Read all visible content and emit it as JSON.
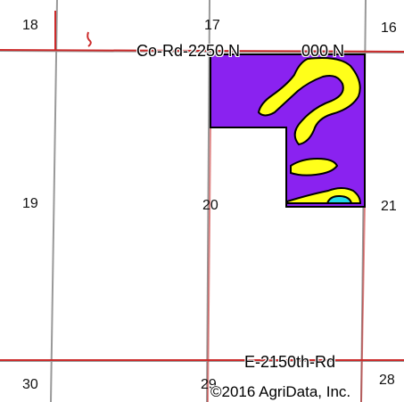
{
  "map": {
    "colors": {
      "section_line": "#999999",
      "road": "#cc2b2b",
      "soil_purple": "#8a22f0",
      "soil_yellow": "#ffff1a",
      "soil_cyan": "#22d8e8",
      "field_border": "#000000"
    },
    "sections": {
      "s18": "18",
      "s17": "17",
      "s16": "16",
      "s19": "19",
      "s20": "20",
      "s21": "21",
      "s30": "30",
      "s29": "29",
      "s28": "28"
    },
    "roads": {
      "north": "Co-Rd-2250 N",
      "north_east": "000 N",
      "south": "E-2150th-Rd"
    },
    "copyright": "©2016 AgriData, Inc."
  }
}
